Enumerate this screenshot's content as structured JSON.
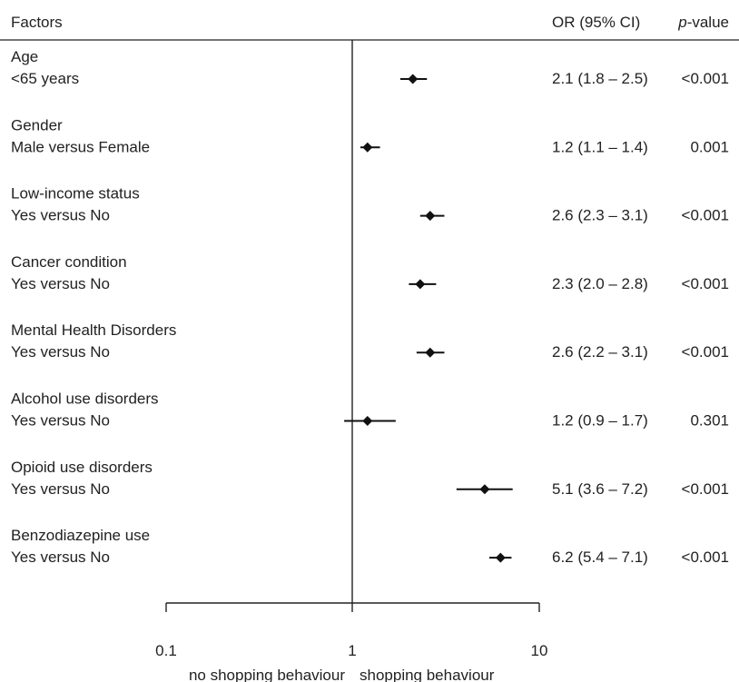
{
  "chart_data": {
    "type": "forest",
    "headers": {
      "factors": "Factors",
      "or_ci": "OR (95% CI)",
      "p_italic": "p",
      "p_suffix": "-value"
    },
    "axis": {
      "scale": "log",
      "range": [
        0.1,
        10
      ],
      "ticks": [
        "0.1",
        "1",
        "10"
      ],
      "reference_line": 1
    },
    "direction_labels": {
      "left": "no shopping behaviour",
      "right": "shopping behaviour"
    },
    "rows": [
      {
        "factor": "Age",
        "comparison": "<65 years",
        "or": 2.1,
        "lower": 1.8,
        "upper": 2.5,
        "or_ci": "2.1 (1.8 – 2.5)",
        "p": "<0.001"
      },
      {
        "factor": "Gender",
        "comparison": "Male versus Female",
        "or": 1.2,
        "lower": 1.1,
        "upper": 1.4,
        "or_ci": "1.2 (1.1 – 1.4)",
        "p": "0.001"
      },
      {
        "factor": "Low-income status",
        "comparison": "Yes versus No",
        "or": 2.6,
        "lower": 2.3,
        "upper": 3.1,
        "or_ci": "2.6 (2.3 – 3.1)",
        "p": "<0.001"
      },
      {
        "factor": "Cancer condition",
        "comparison": "Yes versus No",
        "or": 2.3,
        "lower": 2.0,
        "upper": 2.8,
        "or_ci": "2.3 (2.0 – 2.8)",
        "p": "<0.001"
      },
      {
        "factor": "Mental Health Disorders",
        "comparison": "Yes versus No",
        "or": 2.6,
        "lower": 2.2,
        "upper": 3.1,
        "or_ci": "2.6 (2.2 – 3.1)",
        "p": "<0.001"
      },
      {
        "factor": "Alcohol use disorders",
        "comparison": "Yes versus No",
        "or": 1.2,
        "lower": 0.9,
        "upper": 1.7,
        "or_ci": "1.2 (0.9 – 1.7)",
        "p": "0.301"
      },
      {
        "factor": "Opioid use disorders",
        "comparison": "Yes versus No",
        "or": 5.1,
        "lower": 3.6,
        "upper": 7.2,
        "or_ci": "5.1 (3.6 – 7.2)",
        "p": "<0.001"
      },
      {
        "factor": "Benzodiazepine use",
        "comparison": "Yes versus No",
        "or": 6.2,
        "lower": 5.4,
        "upper": 7.1,
        "or_ci": "6.2 (5.4 – 7.1)",
        "p": "<0.001"
      }
    ]
  }
}
